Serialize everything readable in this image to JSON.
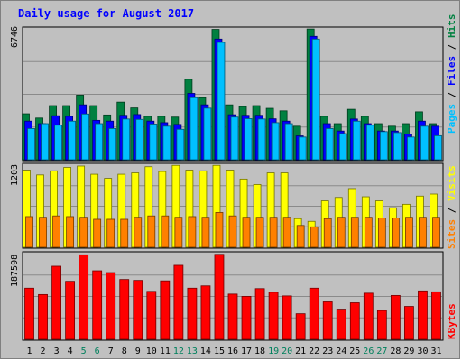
{
  "title": "Daily usage for August 2017",
  "colors": {
    "hits": "#008040",
    "files": "#0000ff",
    "pages": "#00c0ff",
    "visits": "#ffff00",
    "sites": "#ff8000",
    "kbytes": "#ff0000",
    "title": "#0000ff",
    "weekend_label": "#00805c",
    "weekday_label": "#000000",
    "background": "#c0c0c0"
  },
  "labels": {
    "panel1_max": "6746",
    "panel2_max": "1203",
    "panel3_max": "187598",
    "pages": "Pages",
    "files": "Files",
    "hits": "Hits",
    "sites": "Sites",
    "visits": "Visits",
    "kbytes": "KBytes",
    "sep": " / "
  },
  "chart_data": [
    {
      "type": "bar",
      "categories": [
        "1",
        "2",
        "3",
        "4",
        "5",
        "6",
        "7",
        "8",
        "9",
        "10",
        "11",
        "12",
        "13",
        "14",
        "15",
        "16",
        "17",
        "18",
        "19",
        "20",
        "21",
        "22",
        "23",
        "24",
        "25",
        "26",
        "27",
        "28",
        "29",
        "30",
        "31"
      ],
      "weekend_days": [
        "5",
        "6",
        "12",
        "13",
        "19",
        "20",
        "26",
        "27"
      ],
      "ylim": [
        0,
        6746
      ],
      "series": [
        {
          "name": "Hits",
          "values": [
            2370,
            2150,
            2790,
            2790,
            3330,
            2790,
            2310,
            2970,
            2670,
            2240,
            2240,
            2200,
            4150,
            3200,
            6720,
            2830,
            2740,
            2790,
            2650,
            2520,
            1730,
            6740,
            2240,
            1860,
            2600,
            2240,
            1860,
            1730,
            1860,
            2470,
            1860
          ]
        },
        {
          "name": "Files",
          "values": [
            1990,
            1860,
            2270,
            2240,
            2830,
            2030,
            1990,
            2290,
            2330,
            1990,
            1910,
            1820,
            3420,
            2830,
            6220,
            2320,
            2290,
            2290,
            2110,
            1990,
            1230,
            6360,
            1860,
            1480,
            2100,
            1860,
            1480,
            1480,
            1320,
            1990,
            1730
          ]
        },
        {
          "name": "Pages",
          "values": [
            1610,
            1860,
            1780,
            1990,
            2360,
            1860,
            1610,
            2100,
            2080,
            1840,
            1730,
            1570,
            3200,
            2660,
            6050,
            2200,
            2120,
            2100,
            1910,
            1860,
            1170,
            6220,
            1610,
            1350,
            1990,
            1780,
            1450,
            1400,
            1170,
            1730,
            1240
          ]
        }
      ]
    },
    {
      "type": "bar",
      "categories": [
        "1",
        "2",
        "3",
        "4",
        "5",
        "6",
        "7",
        "8",
        "9",
        "10",
        "11",
        "12",
        "13",
        "14",
        "15",
        "16",
        "17",
        "18",
        "19",
        "20",
        "21",
        "22",
        "23",
        "24",
        "25",
        "26",
        "27",
        "28",
        "29",
        "30",
        "31"
      ],
      "ylim": [
        0,
        1203
      ],
      "series": [
        {
          "name": "Visits",
          "values": [
            1130,
            1060,
            1120,
            1170,
            1190,
            1070,
            1010,
            1070,
            1090,
            1180,
            1110,
            1200,
            1130,
            1120,
            1200,
            1130,
            1000,
            920,
            1090,
            1090,
            420,
            380,
            680,
            730,
            860,
            740,
            680,
            580,
            630,
            750,
            780
          ]
        },
        {
          "name": "Sites",
          "values": [
            450,
            440,
            460,
            450,
            440,
            410,
            410,
            410,
            440,
            460,
            460,
            440,
            450,
            440,
            510,
            460,
            440,
            440,
            440,
            440,
            320,
            300,
            420,
            440,
            440,
            440,
            430,
            430,
            440,
            440,
            440
          ]
        }
      ]
    },
    {
      "type": "bar",
      "categories": [
        "1",
        "2",
        "3",
        "4",
        "5",
        "6",
        "7",
        "8",
        "9",
        "10",
        "11",
        "12",
        "13",
        "14",
        "15",
        "16",
        "17",
        "18",
        "19",
        "20",
        "21",
        "22",
        "23",
        "24",
        "25",
        "26",
        "27",
        "28",
        "29",
        "30",
        "31"
      ],
      "ylim": [
        0,
        187598
      ],
      "series": [
        {
          "name": "KBytes",
          "values": [
            112000,
            98000,
            160000,
            127000,
            185000,
            150000,
            146000,
            131000,
            129000,
            105000,
            128000,
            162000,
            112000,
            117000,
            186000,
            99000,
            94000,
            111000,
            103000,
            95000,
            56000,
            112000,
            82000,
            66000,
            80000,
            101000,
            63000,
            96000,
            72000,
            106000,
            104000
          ]
        }
      ]
    }
  ]
}
